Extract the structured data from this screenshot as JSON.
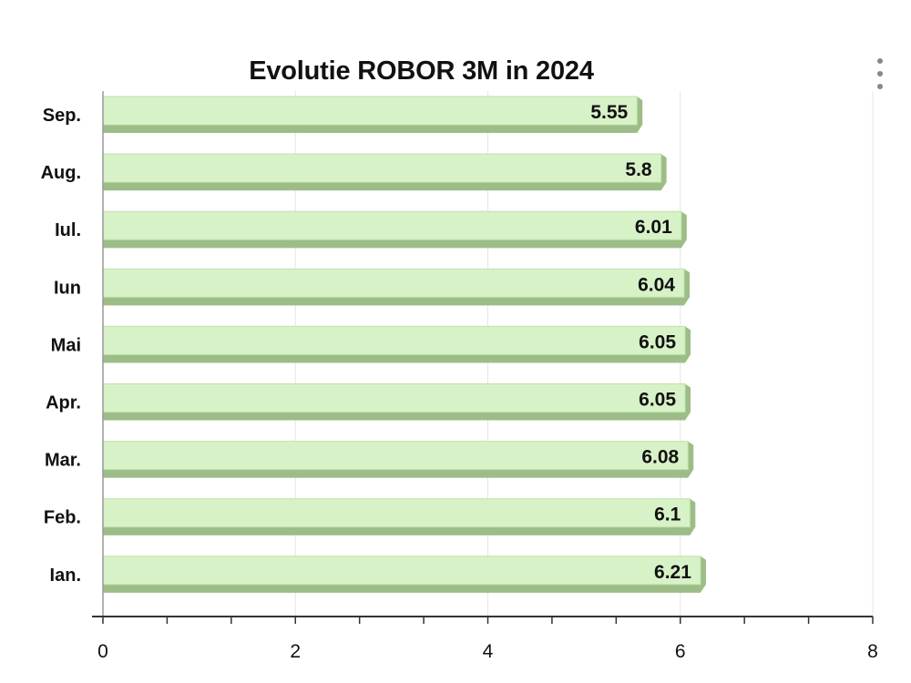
{
  "chart_data": {
    "type": "bar",
    "orientation": "horizontal",
    "title": "Evolutie ROBOR 3M in 2024",
    "categories": [
      "Sep.",
      "Aug.",
      "Iul.",
      "Iun",
      "Mai",
      "Apr.",
      "Mar.",
      "Feb.",
      "Ian."
    ],
    "values": [
      5.55,
      5.8,
      6.01,
      6.04,
      6.05,
      6.05,
      6.08,
      6.1,
      6.21
    ],
    "value_labels": [
      "5.55",
      "5.8",
      "6.01",
      "6.04",
      "6.05",
      "6.05",
      "6.08",
      "6.1",
      "6.21"
    ],
    "xlim": [
      0,
      8
    ],
    "xticks": [
      0,
      2,
      4,
      6,
      8
    ],
    "xlabel": "",
    "ylabel": "",
    "grid": true,
    "legend": "none",
    "colors": {
      "bar_face": "#d8f2c8",
      "bar_shadow": "#9dbd88",
      "bar_edge": "#bfe2a8",
      "grid": "#e6e6e6",
      "axis": "#333333"
    }
  },
  "toolbar": {
    "menu_icon": "more-vertical-icon"
  }
}
